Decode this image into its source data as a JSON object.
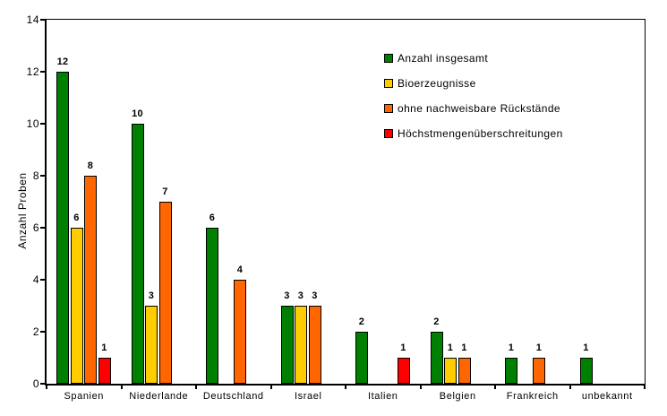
{
  "chart_data": {
    "type": "bar",
    "title": "",
    "xlabel": "",
    "ylabel": "Anzahl Proben",
    "ylim": [
      0,
      14
    ],
    "yticks": [
      0,
      2,
      4,
      6,
      8,
      10,
      12,
      14
    ],
    "grid": false,
    "legend_position": "upper-right-inside",
    "bar_value_labels": true,
    "categories": [
      "Spanien",
      "Niederlande",
      "Deutschland",
      "Israel",
      "Italien",
      "Belgien",
      "Frankreich",
      "unbekannt"
    ],
    "series": [
      {
        "name": "Anzahl insgesamt",
        "color": "#008000",
        "values": [
          12,
          10,
          6,
          3,
          2,
          2,
          1,
          1
        ]
      },
      {
        "name": "Bioerzeugnisse",
        "color": "#FFCC00",
        "values": [
          6,
          3,
          0,
          3,
          0,
          1,
          0,
          0
        ]
      },
      {
        "name": "ohne nachweisbare Rückstände",
        "color": "#FF6600",
        "values": [
          8,
          7,
          4,
          3,
          0,
          1,
          1,
          0
        ]
      },
      {
        "name": "Höchstmengenüberschreitungen",
        "color": "#FF0000",
        "values": [
          1,
          0,
          0,
          0,
          1,
          0,
          0,
          0
        ]
      }
    ]
  }
}
